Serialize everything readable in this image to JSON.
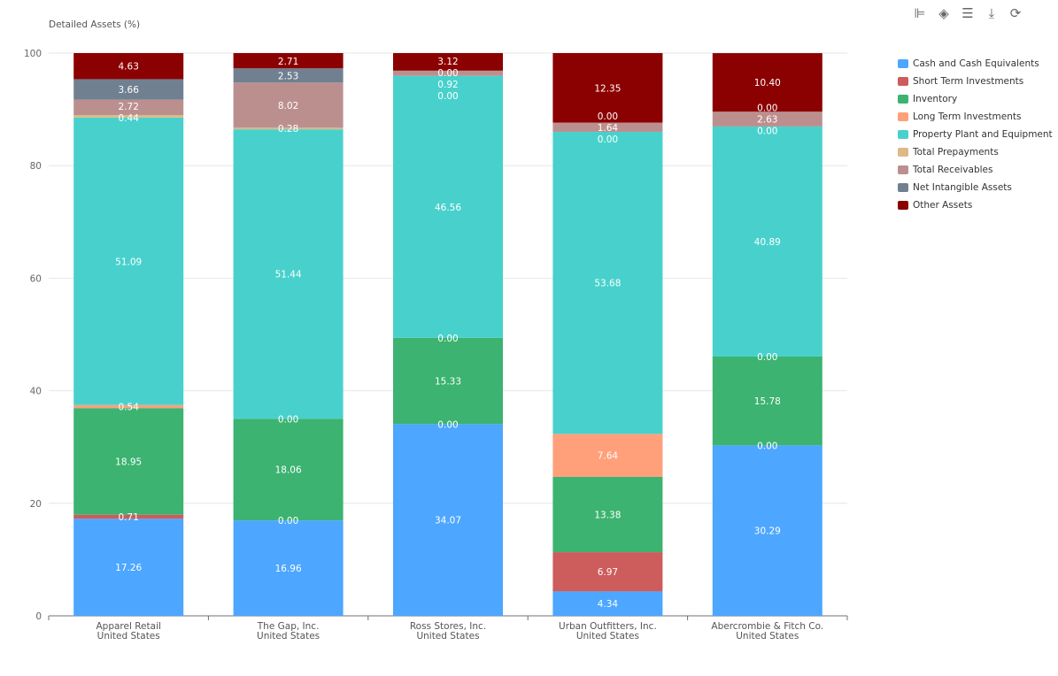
{
  "toolbox": [
    {
      "name": "bar-stack-icon",
      "glyph": "⊫"
    },
    {
      "name": "tag-icon",
      "glyph": "◈"
    },
    {
      "name": "data-view-icon",
      "glyph": "☰"
    },
    {
      "name": "download-icon",
      "glyph": "⤓"
    },
    {
      "name": "refresh-icon",
      "glyph": "⟳"
    }
  ],
  "chart_data": {
    "type": "bar",
    "stacked": true,
    "title": "",
    "ylabel": "Detailed Assets (%)",
    "ylim": [
      0,
      100
    ],
    "yticks": [
      "0",
      "20",
      "40",
      "60",
      "80",
      "100"
    ],
    "grid": true,
    "legend_position": "right",
    "categories": [
      {
        "line1": "Apparel Retail",
        "line2": "United States"
      },
      {
        "line1": "The Gap, Inc.",
        "line2": "United States"
      },
      {
        "line1": "Ross Stores, Inc.",
        "line2": "United States"
      },
      {
        "line1": "Urban Outfitters, Inc.",
        "line2": "United States"
      },
      {
        "line1": "Abercrombie & Fitch Co.",
        "line2": "United States"
      }
    ],
    "series": [
      {
        "name": "Cash and Cash Equivalents",
        "color": "#4da6ff",
        "values": [
          17.26,
          16.96,
          34.07,
          4.34,
          30.29
        ]
      },
      {
        "name": "Short Term Investments",
        "color": "#cd5c5c",
        "values": [
          0.71,
          0.0,
          0.0,
          6.97,
          0.0
        ]
      },
      {
        "name": "Inventory",
        "color": "#3cb371",
        "values": [
          18.95,
          18.06,
          15.33,
          13.38,
          15.78
        ]
      },
      {
        "name": "Long Term Investments",
        "color": "#ffa07a",
        "values": [
          0.54,
          0.0,
          0.0,
          7.64,
          0.0
        ]
      },
      {
        "name": "Property Plant and Equipment",
        "color": "#48d1cc",
        "values": [
          51.09,
          51.44,
          46.56,
          53.68,
          40.89
        ]
      },
      {
        "name": "Total Prepayments",
        "color": "#deb887",
        "values": [
          0.44,
          0.28,
          0.0,
          0.0,
          0.0
        ]
      },
      {
        "name": "Total Receivables",
        "color": "#bc8f8f",
        "values": [
          2.72,
          8.02,
          0.92,
          1.64,
          2.63
        ]
      },
      {
        "name": "Net Intangible Assets",
        "color": "#708090",
        "values": [
          3.66,
          2.53,
          0.0,
          0.0,
          0.0
        ]
      },
      {
        "name": "Other Assets",
        "color": "#8b0000",
        "values": [
          4.63,
          2.71,
          3.12,
          12.35,
          10.4
        ]
      }
    ]
  }
}
